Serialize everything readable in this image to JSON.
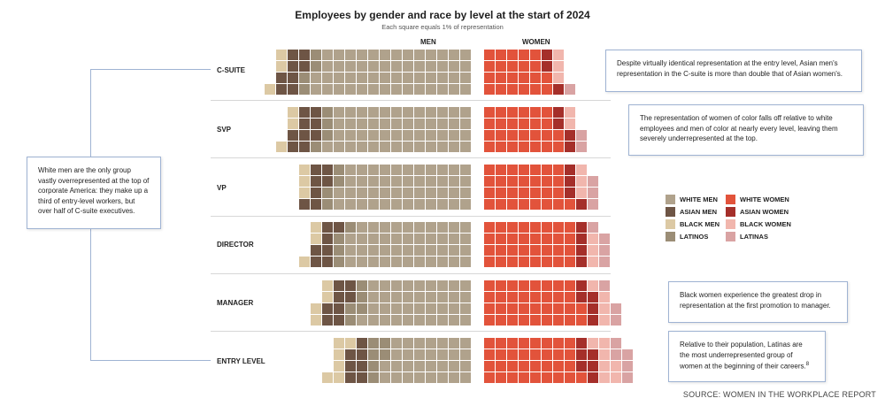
{
  "header": {
    "title": "Employees by gender and race by level at the start of 2024",
    "subtitle": "Each square equals 1% of representation",
    "men_label": "MEN",
    "women_label": "WOMEN"
  },
  "chart_data": {
    "type": "waffle",
    "unit": "Each square equals 1% of representation",
    "levels": [
      "C-SUITE",
      "SVP",
      "VP",
      "DIRECTOR",
      "MANAGER",
      "ENTRY LEVEL"
    ],
    "groups": [
      "WHITE MEN",
      "ASIAN MEN",
      "BLACK MEN",
      "LATINOS",
      "WHITE WOMEN",
      "ASIAN WOMEN",
      "BLACK WOMEN",
      "LATINAS"
    ],
    "colors": {
      "WHITE MEN": "#b0a28c",
      "ASIAN MEN": "#6e5545",
      "BLACK MEN": "#dcc9a4",
      "LATINOS": "#9b8d76",
      "WHITE WOMEN": "#e2533b",
      "ASIAN WOMEN": "#a52f2a",
      "BLACK WOMEN": "#f1b6ad",
      "LATINAS": "#d9a3a3"
    },
    "series": [
      {
        "level": "C-SUITE",
        "WHITE MEN": 54,
        "ASIAN MEN": 8,
        "BLACK MEN": 3,
        "LATINOS": 4,
        "WHITE WOMEN": 22,
        "ASIAN WOMEN": 3,
        "BLACK WOMEN": 3,
        "LATINAS": 1
      },
      {
        "level": "SVP",
        "WHITE MEN": 49,
        "ASIAN MEN": 9,
        "BLACK MEN": 3,
        "LATINOS": 4,
        "WHITE WOMEN": 26,
        "ASIAN WOMEN": 4,
        "BLACK WOMEN": 2,
        "LATINAS": 2
      },
      {
        "level": "VP",
        "WHITE MEN": 46,
        "ASIAN MEN": 7,
        "BLACK MEN": 3,
        "LATINOS": 4,
        "WHITE WOMEN": 29,
        "ASIAN WOMEN": 4,
        "BLACK WOMEN": 3,
        "LATINAS": 3
      },
      {
        "level": "DIRECTOR",
        "WHITE MEN": 43,
        "ASIAN MEN": 7,
        "BLACK MEN": 3,
        "LATINOS": 4,
        "WHITE WOMEN": 32,
        "ASIAN WOMEN": 4,
        "BLACK WOMEN": 3,
        "LATINAS": 4
      },
      {
        "level": "MANAGER",
        "WHITE MEN": 37,
        "ASIAN MEN": 8,
        "BLACK MEN": 4,
        "LATINOS": 5,
        "WHITE WOMEN": 34,
        "ASIAN WOMEN": 5,
        "BLACK WOMEN": 4,
        "LATINAS": 3
      },
      {
        "level": "ENTRY LEVEL",
        "WHITE MEN": 30,
        "ASIAN MEN": 7,
        "BLACK MEN": 6,
        "LATINOS": 6,
        "WHITE WOMEN": 33,
        "ASIAN WOMEN": 6,
        "BLACK WOMEN": 7,
        "LATINAS": 5
      }
    ]
  },
  "legend": {
    "items": [
      "WHITE MEN",
      "WHITE WOMEN",
      "ASIAN MEN",
      "ASIAN WOMEN",
      "BLACK MEN",
      "BLACK WOMEN",
      "LATINOS",
      "LATINAS"
    ]
  },
  "notes": {
    "white_men": "White men are the only group vastly overrepresented at the top of corporate America: they make up a third of entry-level workers, but over half of C-suite executives.",
    "asian": "Despite virtually identical representation at the entry level, Asian men's representation in the C-suite is more than double that of Asian women's.",
    "women_of_color": "The representation of women of color falls off relative to white employees and men of color at nearly every level, leaving them severely underrepresented at the top.",
    "black_women": "Black women experience the greatest drop in representation at the first promotion to manager.",
    "latinas": "Relative to their population, Latinas are the most underrepresented group of women at the beginning of their careers.",
    "latinas_footnote": "8"
  },
  "source": "SOURCE: WOMEN IN THE WORKPLACE REPORT"
}
